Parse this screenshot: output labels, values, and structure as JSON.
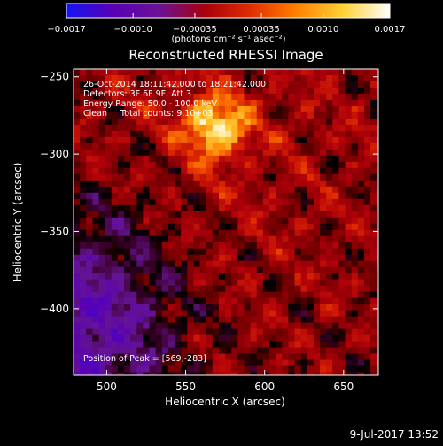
{
  "chart_data": {
    "type": "heatmap",
    "title": "Reconstructed RHESSI Image",
    "xlabel": "Heliocentric X (arcsec)",
    "ylabel": "Heliocentric Y (arcsec)",
    "xlim": [
      479,
      672
    ],
    "ylim": [
      -443,
      -245
    ],
    "x_ticks": [
      500,
      550,
      600,
      650
    ],
    "y_ticks": [
      -250,
      -300,
      -350,
      -400
    ],
    "x_tick_labels": [
      "500",
      "550",
      "600",
      "650"
    ],
    "y_tick_labels": [
      "−250",
      "−300",
      "−350",
      "−400"
    ],
    "colorbar": {
      "range": [
        -0.0017,
        0.0017
      ],
      "ticks": [
        -0.0017,
        -0.001,
        -0.00035,
        0.00035,
        0.001,
        0.0017
      ],
      "tick_labels": [
        "−0.0017",
        "−0.0010",
        "−0.00035",
        "0.00035",
        "0.0010",
        "0.0017"
      ],
      "unit_label": "(photons cm⁻² s⁻¹ asec⁻²)",
      "colors": [
        "#1515f5",
        "#5a00b5",
        "#6b1296",
        "#a8000c",
        "#e02e00",
        "#ff8200",
        "#ffd238",
        "#ffffff"
      ]
    },
    "annotations": [
      "26-Oct-2014 18:11:42.000 to 18:21:42.000",
      "Detectors: 3F 6F 9F, Att 3",
      "Energy Range: 50.0 - 100.0 keV",
      "Clean     Total counts: 9.10+03"
    ],
    "peak_label": "Position of Peak = [569,-283]",
    "peak": {
      "x": 569,
      "y": -283
    },
    "source_sigma": 14,
    "pixel_arcsec": 4
  },
  "footer": {
    "timestamp": "9-Jul-2017 13:52"
  }
}
